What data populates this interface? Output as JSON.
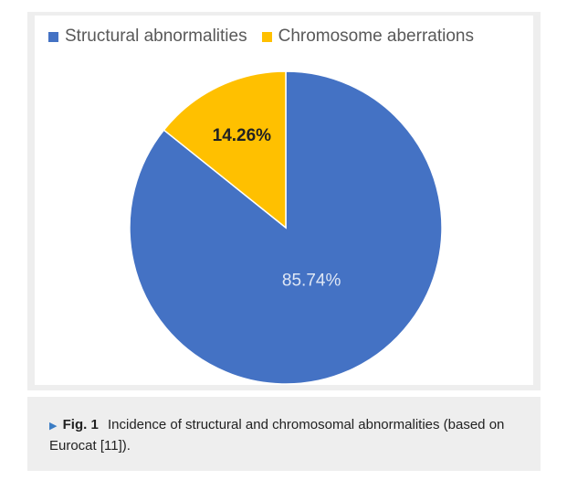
{
  "chart_data": {
    "type": "pie",
    "series": [
      {
        "name": "Structural abnormalities",
        "value": 85.74,
        "label": "85.74%",
        "color": "#4472c4",
        "label_color": "#dfe7f5"
      },
      {
        "name": "Chromosome aberrations",
        "value": 14.26,
        "label": "14.26%",
        "color": "#ffc000",
        "label_color": "#222222"
      }
    ],
    "legend_position": "top-left",
    "slice_border_color": "#ffffff"
  },
  "caption": {
    "label": "Fig. 1",
    "text": "Incidence of structural and chromosomal abnormalities (based on Eurocat [11]).",
    "accent_color": "#3a7cc4"
  }
}
